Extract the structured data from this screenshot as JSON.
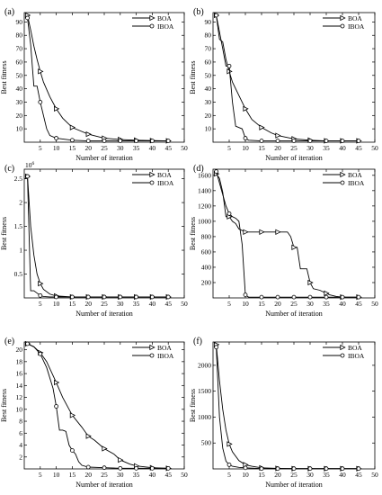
{
  "chart_data": [
    {
      "panel": "(a)",
      "type": "line",
      "xlabel": "Number of iteration",
      "ylabel": "Best fitness",
      "xlim": [
        0,
        50
      ],
      "ylim": [
        0,
        97
      ],
      "xticks": [
        5,
        10,
        15,
        20,
        25,
        30,
        35,
        40,
        45,
        50
      ],
      "xtick_labels": [
        "5",
        "10",
        "15",
        "20",
        "25",
        "30",
        "35",
        "40",
        "45",
        "50"
      ],
      "yticks": [
        10,
        20,
        30,
        40,
        50,
        60,
        70,
        80,
        90
      ],
      "ytick_labels": [
        "10",
        "20",
        "30",
        "40",
        "50",
        "60",
        "70",
        "80",
        "90"
      ],
      "y_multiplier": "",
      "legend": "top-right",
      "series": [
        {
          "name": "BOA",
          "marker": "triangle-right",
          "x": [
            1,
            2,
            3,
            4,
            5,
            6,
            8,
            10,
            12,
            15,
            18,
            20,
            25,
            30,
            35,
            40,
            45
          ],
          "y": [
            95,
            84,
            72,
            62,
            53,
            45,
            34,
            25,
            18,
            11,
            8,
            6,
            3,
            2,
            1.5,
            1.2,
            1
          ]
        },
        {
          "name": "IBOA",
          "marker": "circle",
          "x": [
            1,
            2,
            3,
            4,
            5,
            6,
            7,
            8,
            10,
            15,
            20,
            25,
            30,
            35,
            40,
            45
          ],
          "y": [
            93,
            73,
            42,
            42,
            30,
            20,
            10,
            5,
            3,
            1.5,
            1,
            1,
            1,
            1,
            1,
            1
          ]
        }
      ]
    },
    {
      "panel": "(b)",
      "type": "line",
      "xlabel": "Number of iteration",
      "ylabel": "Best fitness",
      "xlim": [
        0,
        50
      ],
      "ylim": [
        0,
        97
      ],
      "xticks": [
        5,
        10,
        15,
        20,
        25,
        30,
        35,
        40,
        45,
        50
      ],
      "xtick_labels": [
        "5",
        "10",
        "15",
        "20",
        "25",
        "30",
        "35",
        "40",
        "45",
        "50"
      ],
      "yticks": [
        10,
        20,
        30,
        40,
        50,
        60,
        70,
        80,
        90
      ],
      "ytick_labels": [
        "10",
        "20",
        "30",
        "40",
        "50",
        "60",
        "70",
        "80",
        "90"
      ],
      "y_multiplier": "",
      "legend": "top-right",
      "series": [
        {
          "name": "BOA",
          "marker": "triangle-right",
          "x": [
            1,
            2,
            3,
            4,
            5,
            6,
            8,
            10,
            12,
            15,
            18,
            20,
            25,
            30,
            35,
            40,
            45
          ],
          "y": [
            95,
            77,
            75,
            62,
            53,
            45,
            35,
            25,
            17,
            11,
            7,
            5,
            2.5,
            1.5,
            1,
            1,
            1
          ]
        },
        {
          "name": "IBOA",
          "marker": "circle",
          "x": [
            1,
            3,
            4,
            5,
            6,
            7,
            8,
            9,
            10,
            11,
            15,
            20,
            25,
            30,
            35,
            40,
            45
          ],
          "y": [
            95,
            70,
            57,
            57,
            30,
            12,
            11,
            10,
            3,
            1.5,
            1,
            1,
            1,
            1,
            1,
            1,
            1
          ]
        }
      ]
    },
    {
      "panel": "(c)",
      "type": "line",
      "xlabel": "Number of iteration",
      "ylabel": "Best fitness",
      "xlim": [
        0,
        50
      ],
      "ylim": [
        0,
        2.7
      ],
      "xticks": [
        5,
        10,
        15,
        20,
        25,
        30,
        35,
        40,
        45,
        50
      ],
      "xtick_labels": [
        "5",
        "10",
        "15",
        "20",
        "25",
        "30",
        "35",
        "40",
        "45",
        "50"
      ],
      "yticks": [
        0.5,
        1,
        1.5,
        2,
        2.5
      ],
      "ytick_labels": [
        "0.5",
        "1",
        "1.5",
        "2",
        "2.5"
      ],
      "y_multiplier": "10^6",
      "legend": "top-right",
      "series": [
        {
          "name": "BOA",
          "marker": "triangle-right",
          "x": [
            1,
            2,
            3,
            4,
            5,
            6,
            8,
            10,
            15,
            20,
            25,
            30,
            35,
            40,
            45
          ],
          "y": [
            2.55,
            1.5,
            0.9,
            0.5,
            0.3,
            0.18,
            0.08,
            0.04,
            0.02,
            0.02,
            0.02,
            0.02,
            0.02,
            0.02,
            0.02
          ]
        },
        {
          "name": "IBOA",
          "marker": "circle",
          "x": [
            1,
            2,
            3,
            4,
            5,
            6,
            8,
            10,
            15,
            20,
            25,
            30,
            35,
            40,
            45
          ],
          "y": [
            2.55,
            0.15,
            0.15,
            0.1,
            0.05,
            0.03,
            0.02,
            0.02,
            0.02,
            0.02,
            0.02,
            0.02,
            0.02,
            0.02,
            0.02
          ]
        }
      ]
    },
    {
      "panel": "(d)",
      "type": "line",
      "xlabel": "Number of iteration",
      "ylabel": "Best fitness",
      "xlim": [
        0,
        50
      ],
      "ylim": [
        0,
        1680
      ],
      "xticks": [
        5,
        10,
        15,
        20,
        25,
        30,
        35,
        40,
        45,
        50
      ],
      "xtick_labels": [
        "5",
        "10",
        "15",
        "20",
        "25",
        "30",
        "35",
        "40",
        "45",
        "50"
      ],
      "yticks": [
        200,
        400,
        600,
        800,
        1000,
        1200,
        1400,
        1600
      ],
      "ytick_labels": [
        "200",
        "400",
        "600",
        "800",
        "1000",
        "1200",
        "1400",
        "1600"
      ],
      "y_multiplier": "",
      "legend": "top-right",
      "series": [
        {
          "name": "BOA",
          "marker": "triangle-right",
          "x": [
            1,
            2,
            3,
            4,
            5,
            6,
            7,
            8,
            9,
            10,
            15,
            20,
            23,
            24,
            25,
            26,
            27,
            28,
            29,
            30,
            31,
            33,
            35,
            36,
            38,
            40,
            45
          ],
          "y": [
            1620,
            1560,
            1380,
            1060,
            1060,
            1000,
            970,
            900,
            880,
            860,
            860,
            860,
            860,
            800,
            660,
            660,
            380,
            380,
            380,
            200,
            120,
            100,
            60,
            40,
            20,
            10,
            10
          ]
        },
        {
          "name": "IBOA",
          "marker": "circle",
          "x": [
            1,
            2,
            3,
            4,
            5,
            6,
            7,
            8,
            9,
            10,
            11,
            15,
            20,
            25,
            30,
            35,
            40,
            45
          ],
          "y": [
            1650,
            1500,
            1350,
            1200,
            1100,
            1060,
            1040,
            1000,
            700,
            40,
            10,
            10,
            10,
            10,
            10,
            10,
            10,
            10
          ]
        }
      ]
    },
    {
      "panel": "(e)",
      "type": "line",
      "xlabel": "Number of iteration",
      "ylabel": "Best fitness",
      "xlim": [
        0,
        50
      ],
      "ylim": [
        0,
        21.3
      ],
      "xticks": [
        5,
        10,
        15,
        20,
        25,
        30,
        35,
        40,
        45,
        50
      ],
      "xtick_labels": [
        "5",
        "10",
        "15",
        "20",
        "25",
        "30",
        "35",
        "40",
        "45",
        "50"
      ],
      "yticks": [
        2,
        4,
        6,
        8,
        10,
        12,
        14,
        16,
        18,
        20
      ],
      "ytick_labels": [
        "2",
        "4",
        "6",
        "8",
        "10",
        "12",
        "14",
        "16",
        "18",
        "20"
      ],
      "y_multiplier": "",
      "legend": "top-right",
      "series": [
        {
          "name": "BOA",
          "marker": "triangle-right",
          "x": [
            1,
            3,
            5,
            7,
            10,
            12,
            15,
            18,
            20,
            22,
            25,
            28,
            30,
            33,
            35,
            40,
            45
          ],
          "y": [
            21,
            20.5,
            19.5,
            18,
            14.5,
            12,
            9,
            7,
            5.5,
            4.8,
            3.4,
            2.5,
            1.5,
            0.8,
            0.5,
            0.2,
            0.1
          ]
        },
        {
          "name": "IBOA",
          "marker": "circle",
          "x": [
            1,
            3,
            5,
            7,
            9,
            10,
            11,
            12,
            13,
            14,
            15,
            16,
            17,
            18,
            20,
            25,
            30,
            35,
            40,
            45
          ],
          "y": [
            21,
            20.5,
            19.3,
            17,
            13.5,
            10.5,
            6.5,
            6.5,
            6.3,
            4,
            3.1,
            2.5,
            1.2,
            0.6,
            0.3,
            0.2,
            0.1,
            0.1,
            0.1,
            0.1
          ]
        }
      ]
    },
    {
      "panel": "(f)",
      "type": "line",
      "xlabel": "Number of iteration",
      "ylabel": "Best fitness",
      "xlim": [
        0,
        50
      ],
      "ylim": [
        0,
        2450
      ],
      "xticks": [
        5,
        10,
        15,
        20,
        25,
        30,
        35,
        40,
        45,
        50
      ],
      "xtick_labels": [
        "5",
        "10",
        "15",
        "20",
        "25",
        "30",
        "35",
        "40",
        "45",
        "50"
      ],
      "yticks": [
        500,
        1000,
        1500,
        2000
      ],
      "ytick_labels": [
        "500",
        "1000",
        "1500",
        "2000"
      ],
      "y_multiplier": "",
      "legend": "top-right",
      "series": [
        {
          "name": "BOA",
          "marker": "triangle-right",
          "x": [
            1,
            2,
            3,
            4,
            5,
            6,
            8,
            10,
            12,
            15,
            20,
            25,
            30,
            35,
            40,
            45
          ],
          "y": [
            2400,
            1700,
            1150,
            750,
            480,
            330,
            160,
            80,
            50,
            20,
            10,
            5,
            5,
            5,
            5,
            5
          ]
        },
        {
          "name": "IBOA",
          "marker": "circle",
          "x": [
            1,
            2,
            3,
            4,
            5,
            6,
            8,
            10,
            15,
            20,
            25,
            30,
            35,
            40,
            45
          ],
          "y": [
            2350,
            1000,
            400,
            150,
            80,
            50,
            30,
            20,
            5,
            5,
            5,
            5,
            5,
            5,
            5
          ]
        }
      ]
    }
  ]
}
